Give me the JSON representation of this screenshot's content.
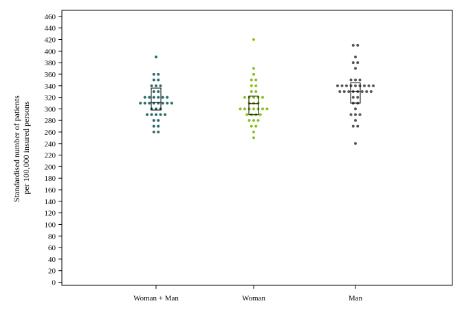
{
  "chart_data": {
    "type": "scatter",
    "subtype": "dot-strip-with-boxplot",
    "title": "",
    "ylabel_lines": [
      "Standardised number of patients",
      "per 100,000 insured persons"
    ],
    "xlabel": "",
    "ylim": [
      0,
      470
    ],
    "yticks": [
      0,
      20,
      40,
      60,
      80,
      100,
      120,
      140,
      160,
      180,
      200,
      220,
      240,
      260,
      280,
      300,
      320,
      340,
      360,
      380,
      400,
      420,
      440,
      460
    ],
    "grid": false,
    "categories": [
      "Woman + Man",
      "Woman",
      "Man"
    ],
    "series": [
      {
        "category": "Woman + Man",
        "color": "#2a6b6b",
        "values": [
          390,
          360,
          360,
          350,
          350,
          340,
          340,
          340,
          330,
          330,
          320,
          320,
          320,
          320,
          320,
          320,
          310,
          310,
          310,
          310,
          310,
          310,
          310,
          310,
          300,
          300,
          300,
          290,
          290,
          290,
          290,
          290,
          280,
          280,
          270,
          270,
          260,
          260
        ],
        "box": {
          "q1": 298,
          "median": 311,
          "q3": 336
        }
      },
      {
        "category": "Woman",
        "color": "#86c21b",
        "values": [
          420,
          370,
          360,
          350,
          350,
          340,
          340,
          330,
          330,
          320,
          320,
          320,
          320,
          320,
          310,
          310,
          310,
          300,
          300,
          300,
          300,
          300,
          300,
          300,
          290,
          290,
          290,
          290,
          280,
          280,
          280,
          270,
          270,
          260,
          250
        ],
        "box": {
          "q1": 290,
          "median": 309,
          "q3": 322
        }
      },
      {
        "category": "Man",
        "color": "#555555",
        "values": [
          410,
          410,
          390,
          380,
          380,
          370,
          350,
          350,
          350,
          340,
          340,
          340,
          340,
          340,
          340,
          340,
          340,
          340,
          330,
          330,
          330,
          330,
          330,
          330,
          330,
          330,
          320,
          320,
          310,
          310,
          300,
          290,
          290,
          290,
          280,
          270,
          270,
          240
        ],
        "box": {
          "q1": 310,
          "median": 330,
          "q3": 345
        }
      }
    ]
  }
}
